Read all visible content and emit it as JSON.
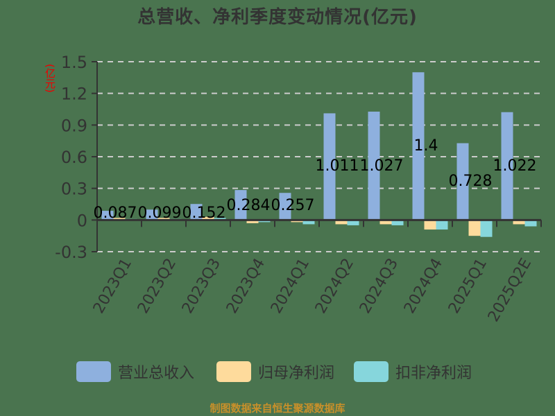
{
  "title": "总营收、净利季度变动情况(亿元)",
  "unit_label": "(亿元)",
  "source_note": "制图数据来自恒生聚源数据库",
  "colors": {
    "background": "#4a744f",
    "revenue": "#8eb0de",
    "net_profit": "#fedb9c",
    "deducted_profit": "#86d6dc",
    "axis": "#333333",
    "grid": "#cccccc",
    "unit": "#ee0000",
    "source": "#c8902a"
  },
  "legend": [
    {
      "label": "营业总收入",
      "color": "#8eb0de"
    },
    {
      "label": "归母净利润",
      "color": "#fedb9c"
    },
    {
      "label": "扣非净利润",
      "color": "#86d6dc"
    }
  ],
  "chart_data": {
    "type": "bar",
    "title": "总营收、净利季度变动情况(亿元)",
    "xlabel": "",
    "ylabel": "(亿元)",
    "ylim": [
      -0.3,
      1.5
    ],
    "yticks": [
      -0.3,
      0,
      0.3,
      0.6,
      0.9,
      1.2,
      1.5
    ],
    "ytick_labels": [
      "-0.3",
      "0",
      "0.3",
      "0.6",
      "0.9",
      "1.2",
      "1.5"
    ],
    "grid": true,
    "legend_position": "bottom",
    "categories": [
      "2023Q1",
      "2023Q2",
      "2023Q3",
      "2023Q4",
      "2024Q1",
      "2024Q2",
      "2024Q3",
      "2024Q4",
      "2025Q1",
      "2025Q2E"
    ],
    "series": [
      {
        "name": "营业总收入",
        "values": [
          0.087,
          0.099,
          0.152,
          0.284,
          0.257,
          1.011,
          1.027,
          1.4,
          0.728,
          1.022
        ],
        "labels": [
          "0.087",
          "0.099",
          "0.152",
          "0.284",
          "0.257",
          "1.011",
          "1.027",
          "1.4",
          "0.728",
          "1.022"
        ]
      },
      {
        "name": "归母净利润",
        "values": [
          0.02,
          0.02,
          0.03,
          -0.03,
          -0.02,
          -0.04,
          -0.04,
          -0.09,
          -0.15,
          -0.04
        ]
      },
      {
        "name": "扣非净利润",
        "values": [
          0.01,
          0.01,
          0.02,
          -0.02,
          -0.04,
          -0.05,
          -0.05,
          -0.09,
          -0.16,
          -0.06
        ]
      }
    ]
  }
}
